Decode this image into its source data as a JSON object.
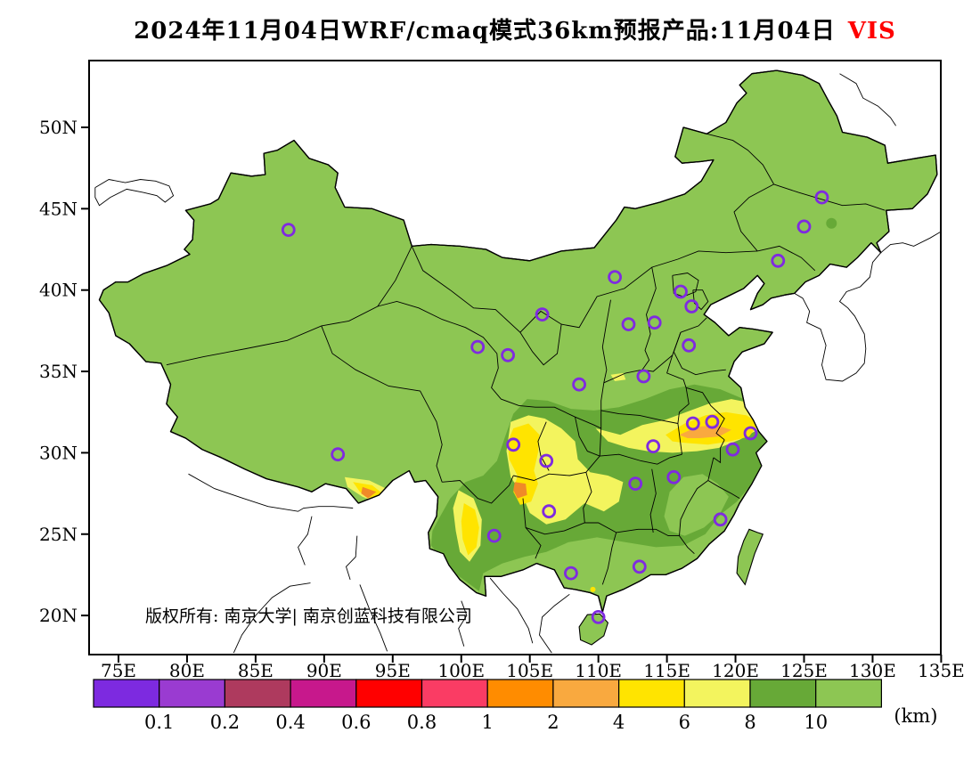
{
  "title": {
    "main": "2024年11月04日WRF/cmaq模式36km预报产品:11月04日",
    "variable": "VIS",
    "variable_color": "#ff0000"
  },
  "map": {
    "copyright": "版权所有: 南京大学| 南京创蓝科技有限公司",
    "city_markers": [
      [
        87.4,
        43.7
      ],
      [
        91.0,
        29.9
      ],
      [
        101.2,
        36.5
      ],
      [
        103.4,
        36.0
      ],
      [
        105.9,
        38.5
      ],
      [
        111.2,
        40.8
      ],
      [
        126.3,
        45.7
      ],
      [
        125.0,
        43.9
      ],
      [
        123.1,
        41.8
      ],
      [
        116.0,
        39.9
      ],
      [
        116.8,
        39.0
      ],
      [
        114.1,
        38.0
      ],
      [
        112.2,
        37.9
      ],
      [
        116.6,
        36.6
      ],
      [
        113.3,
        34.7
      ],
      [
        108.6,
        34.2
      ],
      [
        103.8,
        30.5
      ],
      [
        106.2,
        29.5
      ],
      [
        114.0,
        30.4
      ],
      [
        116.9,
        31.8
      ],
      [
        118.3,
        31.9
      ],
      [
        121.1,
        31.2
      ],
      [
        119.8,
        30.2
      ],
      [
        115.5,
        28.5
      ],
      [
        112.7,
        28.1
      ],
      [
        106.4,
        26.4
      ],
      [
        102.4,
        24.9
      ],
      [
        118.9,
        25.9
      ],
      [
        113.0,
        23.0
      ],
      [
        108.0,
        22.6
      ],
      [
        110.0,
        19.9
      ]
    ]
  },
  "axes": {
    "lat": {
      "tick_labels": [
        "50N",
        "45N",
        "40N",
        "35N",
        "30N",
        "25N",
        "20N"
      ],
      "tick_values": [
        50,
        45,
        40,
        35,
        30,
        25,
        20
      ]
    },
    "lon": {
      "tick_labels": [
        "75E",
        "80E",
        "85E",
        "90E",
        "95E",
        "100E",
        "105E",
        "110E",
        "115E",
        "120E",
        "125E",
        "130E",
        "135E"
      ],
      "tick_values": [
        75,
        80,
        85,
        90,
        95,
        100,
        105,
        110,
        115,
        120,
        125,
        130,
        135
      ]
    }
  },
  "colorbar": {
    "unit_label": "(km)",
    "tick_labels": [
      "0.1",
      "0.2",
      "0.4",
      "0.6",
      "0.8",
      "1",
      "2",
      "4",
      "6",
      "8",
      "10"
    ],
    "colors": [
      "#7d2ae0",
      "#9a3bd1",
      "#ae3a5e",
      "#c7188c",
      "#ff0000",
      "#fa3c64",
      "#ff8c00",
      "#f9a93f",
      "#ffe400",
      "#f3f45e",
      "#67a937",
      "#8dc653"
    ]
  },
  "palette": {
    "land": "#8dc653",
    "dark_green": "#67a937",
    "pale_yellow": "#f3f45e",
    "yellow": "#ffe400",
    "orange": "#f9a93f",
    "deep_orange": "#f08a28",
    "marker": "#7f2ae0",
    "frame": "#000000"
  }
}
